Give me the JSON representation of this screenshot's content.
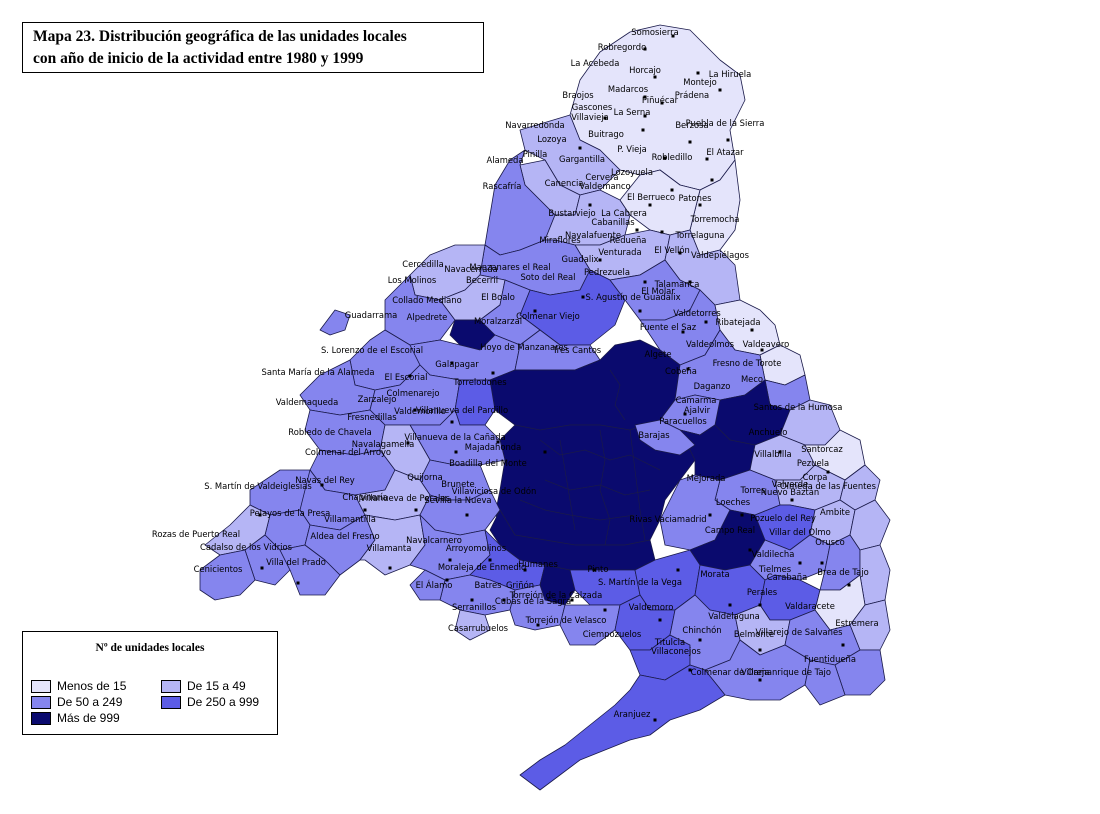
{
  "title": {
    "line1": "Mapa 23. Distribución geográfica de las unidades locales",
    "line2": "con año de inicio de la actividad entre 1980 y 1999"
  },
  "legend": {
    "title": "Nº de unidades locales",
    "items": [
      {
        "label": "Menos de 15",
        "color": "#e4e4fb"
      },
      {
        "label": "De 15 a 49",
        "color": "#b5b5f5"
      },
      {
        "label": "De 50 a 249",
        "color": "#8585ee"
      },
      {
        "label": "De 250 a 999",
        "color": "#5c5ce6"
      },
      {
        "label": "Más de 999",
        "color": "#0a0a6e"
      }
    ]
  },
  "colors": {
    "c1": "#e4e4fb",
    "c2": "#b5b5f5",
    "c3": "#8585ee",
    "c4": "#5c5ce6",
    "c5": "#0a0a6e",
    "border": "#1a1a4a"
  },
  "municipalities": [
    "Somosierra",
    "Robregordo",
    "La Acebeda",
    "Horcajo",
    "La Hiruela",
    "Montejo",
    "Madarcos",
    "Prádena",
    "Braojos",
    "Piñuécar",
    "Gascones",
    "La Serna",
    "Villavieja",
    "Berzosa",
    "Puebla de la Sierra",
    "Navarredonda",
    "Buitrago",
    "Lozoya",
    "El Atazar",
    "Pinilla",
    "Gargantilla",
    "P. Vieja",
    "Robledillo",
    "Alameda",
    "Cervera",
    "Lozoyuela",
    "Rascafría",
    "Canencia",
    "Valdemanco",
    "El Berrueco",
    "Patones",
    "Bustarviejo",
    "La Cabrera",
    "Cabanillas",
    "Torremocha",
    "Navalafuente",
    "Redueña",
    "Torrelaguna",
    "Miraflores",
    "Guadalix",
    "Venturada",
    "El Vellón",
    "Valdepiélagos",
    "Cercedilla",
    "Navacerrada",
    "Manzanares el Real",
    "Soto del Real",
    "Pedrezuela",
    "Los Molinos",
    "Becerril",
    "El Boalo",
    "El Molar",
    "Talamanca",
    "Collado Mediano",
    "S. Agustín de Guadalix",
    "Guadarrama",
    "Alpedrete",
    "Moralzarzal",
    "Colmenar Viejo",
    "Valdetorres",
    "Ribatejada",
    "Fuente el Saz",
    "Valdeolmos",
    "Valdeavero",
    "Hoyo de Manzanares",
    "Tres Cantos",
    "Algete",
    "S. Lorenzo de el Escorial",
    "Santa María de la Alameda",
    "El Escorial",
    "Galapagar",
    "Torrelodones",
    "Cobeña",
    "Fresno de Torote",
    "Colmenarejo",
    "Valdemaqueda",
    "Zarzalejo",
    "Daganzo",
    "Meco",
    "Camarma",
    "Valdemorillo",
    "Villanueva del Pardillo",
    "Ajalvir",
    "Fresnedillas",
    "Robledo de Chavela",
    "Villanueva de la Cañada",
    "Navalagamella",
    "Paracuellos",
    "Barajas",
    "Santos de la Humosa",
    "Anchuelo",
    "Santorcaz",
    "Colmenar del Arroyo",
    "Quijorna",
    "Brunete",
    "Majadahonda",
    "Boadilla del Monte",
    "Villalbilla",
    "Pezuela",
    "Corpa",
    "S. Martín de Valdeiglesias",
    "Navas del Rey",
    "Chapinería",
    "Villamantilla",
    "Villanueva de Perales",
    "Sevilla la Nueva",
    "Villaviciosa de Odón",
    "Mejorada",
    "Torres",
    "Valverde",
    "Nuevo Baztán",
    "Olmeda de las Fuentes",
    "Loeches",
    "Pozuelo del Rey",
    "Ambite",
    "Pelayos de la Presa",
    "Rozas de Puerto Real",
    "Cadalso de los Vidrios",
    "Cenicientos",
    "Villa del Prado",
    "Aldea del Fresno",
    "Villamanta",
    "Navalcarnero",
    "Arroyomolinos",
    "Rivas Vaciamadrid",
    "Campo Real",
    "Valdilecha",
    "Villar del Olmo",
    "Orusco",
    "Tielmes",
    "Carabaña",
    "Brea de Tajo",
    "Moraleja de Enmedio",
    "Humanes",
    "Pinto",
    "Batres",
    "Griñón",
    "Serranillos",
    "El Álamo",
    "Torrejón de la Calzada",
    "Cubas de la Sagra",
    "Casarrubuelos",
    "Torrejón de Velasco",
    "S. Martín de la Vega",
    "Morata",
    "Perales",
    "Valdaracete",
    "Estremera",
    "Valdemoro",
    "Ciempozuelos",
    "Valdelaguna",
    "Belmonte",
    "Villarejo de Salvanés",
    "Titulcia",
    "Villaconejos",
    "Chinchón",
    "Fuentidueña",
    "Colmenar de Oreja",
    "Villamanrique de Tajo",
    "Aranjuez"
  ]
}
